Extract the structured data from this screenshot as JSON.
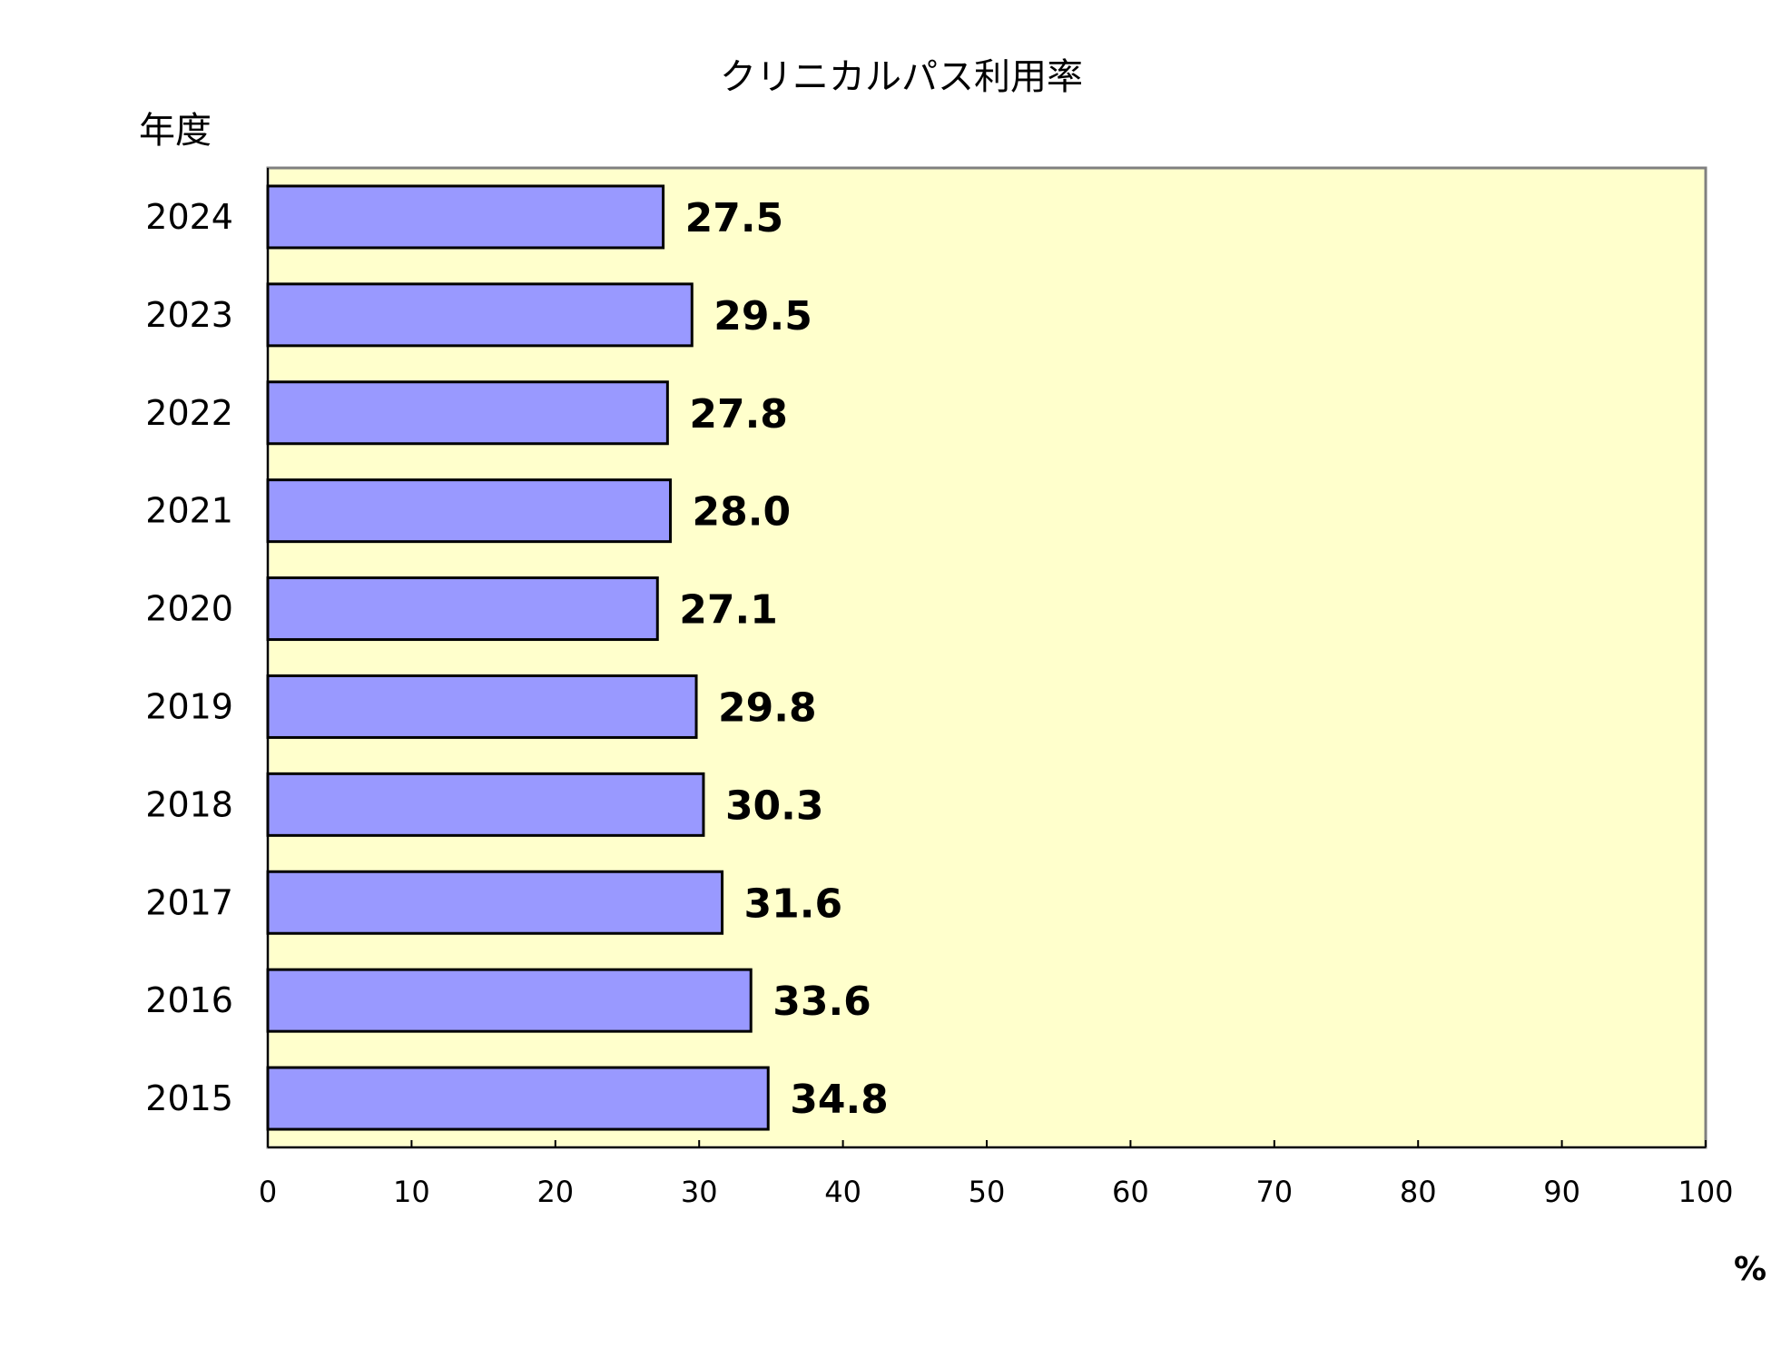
{
  "chart_data": {
    "type": "bar",
    "orientation": "horizontal",
    "title": "クリニカルパス利用率",
    "ylabel": "年度",
    "xlabel": "%",
    "categories": [
      "2024",
      "2023",
      "2022",
      "2021",
      "2020",
      "2019",
      "2018",
      "2017",
      "2016",
      "2015"
    ],
    "values": [
      27.5,
      29.5,
      27.8,
      28.0,
      27.1,
      29.8,
      30.3,
      31.6,
      33.6,
      34.8
    ],
    "value_labels": [
      "27.5",
      "29.5",
      "27.8",
      "28.0",
      "27.1",
      "29.8",
      "30.3",
      "31.6",
      "33.6",
      "34.8"
    ],
    "xlim": [
      0,
      100
    ],
    "xticks": [
      "0",
      "10",
      "20",
      "30",
      "40",
      "50",
      "60",
      "70",
      "80",
      "90",
      "100"
    ],
    "grid": false,
    "legend": "none",
    "colors": {
      "bar": "#9999ff",
      "plot_background": "#ffffcc",
      "bar_border": "#000000"
    }
  }
}
